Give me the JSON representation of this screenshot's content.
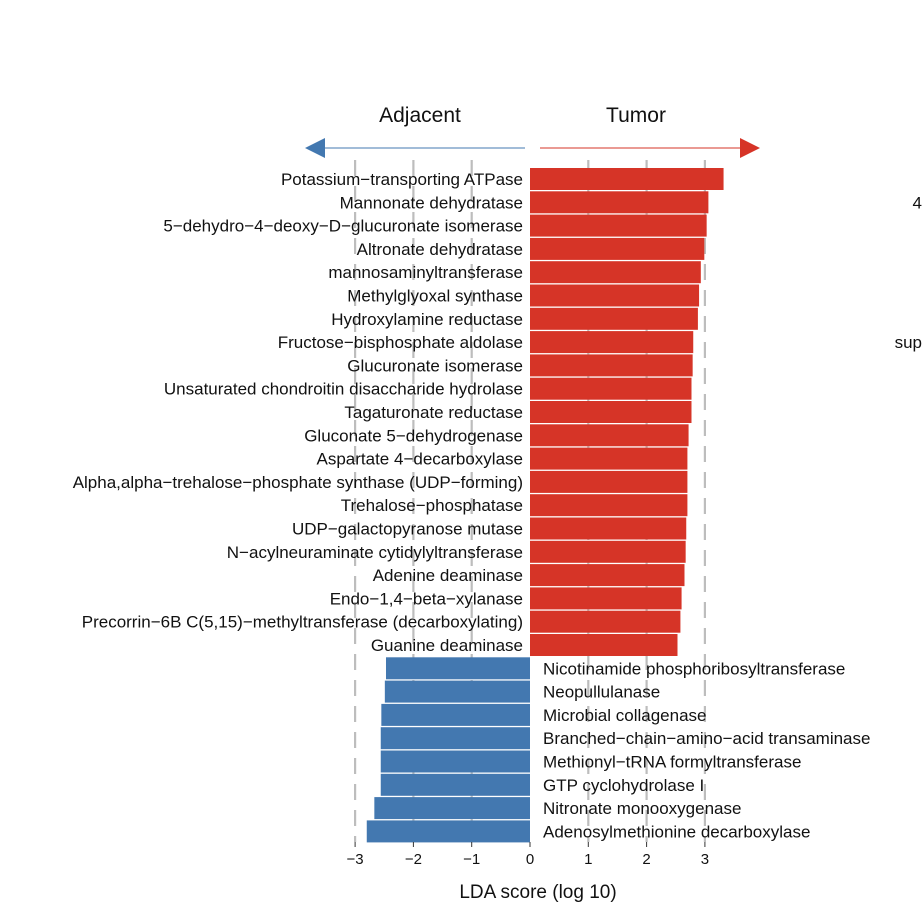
{
  "chart_data": {
    "type": "bar",
    "orientation": "horizontal",
    "xlabel": "LDA score (log 10)",
    "xlim": [
      -3,
      3.5
    ],
    "xticks": [
      -3,
      -2,
      -1,
      0,
      1,
      2,
      3
    ],
    "tick_labels": [
      "−3",
      "−2",
      "−1",
      "0",
      "1",
      "2",
      "3"
    ],
    "groups": [
      {
        "name": "Adjacent",
        "color": "#4378B0",
        "direction": "left"
      },
      {
        "name": "Tumor",
        "color": "#D63427",
        "direction": "right"
      }
    ],
    "series": [
      {
        "name": "Tumor",
        "color": "#D63427",
        "categories": [
          "Potassium−transporting ATPase",
          "Mannonate dehydratase",
          "5−dehydro−4−deoxy−D−glucuronate isomerase",
          "Altronate dehydratase",
          "mannosaminyltransferase",
          "Methylglyoxal synthase",
          "Hydroxylamine reductase",
          "Fructose−bisphosphate aldolase",
          "Glucuronate isomerase",
          "Unsaturated chondroitin disaccharide hydrolase",
          "Tagaturonate reductase",
          "Gluconate 5−dehydrogenase",
          "Aspartate 4−decarboxylase",
          "Alpha,alpha−trehalose−phosphate synthase (UDP−forming)",
          "Trehalose−phosphatase",
          "UDP−galactopyranose mutase",
          "N−acylneuraminate cytidylyltransferase",
          "Adenine deaminase",
          "Endo−1,4−beta−xylanase",
          "Precorrin−6B C(5,15)−methyltransferase (decarboxylating)",
          "Guanine deaminase"
        ],
        "values": [
          3.32,
          3.06,
          3.03,
          2.99,
          2.93,
          2.9,
          2.88,
          2.8,
          2.79,
          2.77,
          2.77,
          2.72,
          2.7,
          2.7,
          2.7,
          2.68,
          2.67,
          2.65,
          2.6,
          2.58,
          2.53
        ]
      },
      {
        "name": "Adjacent",
        "color": "#4378B0",
        "categories": [
          "Nicotinamide phosphoribosyltransferase",
          "Neopullulanase",
          "Microbial collagenase",
          "Branched−chain−amino−acid transaminase",
          "Methionyl−tRNA formyltransferase",
          "GTP cyclohydrolase I",
          "Nitronate monooxygenase",
          "Adenosylmethionine decarboxylase"
        ],
        "values": [
          -2.47,
          -2.49,
          -2.55,
          -2.56,
          -2.56,
          -2.56,
          -2.67,
          -2.8
        ]
      }
    ],
    "edge_fragments": [
      {
        "text": "4",
        "row": 1
      },
      {
        "text": "sup",
        "row": 7
      }
    ]
  }
}
